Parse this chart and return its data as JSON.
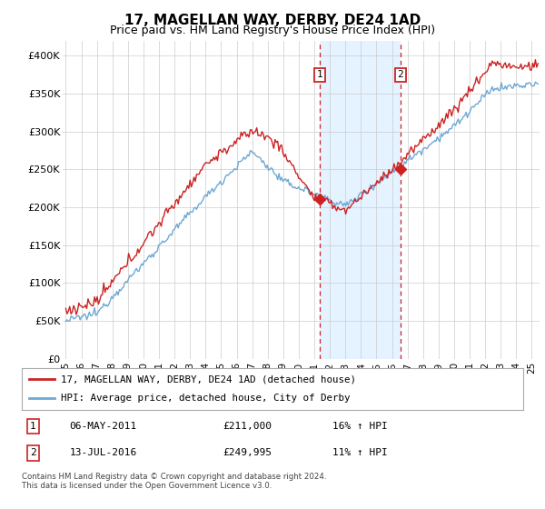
{
  "title": "17, MAGELLAN WAY, DERBY, DE24 1AD",
  "subtitle": "Price paid vs. HM Land Registry's House Price Index (HPI)",
  "ylabel_ticks": [
    "£0",
    "£50K",
    "£100K",
    "£150K",
    "£200K",
    "£250K",
    "£300K",
    "£350K",
    "£400K"
  ],
  "ytick_values": [
    0,
    50000,
    100000,
    150000,
    200000,
    250000,
    300000,
    350000,
    400000
  ],
  "ylim": [
    0,
    420000
  ],
  "xlim_start": 1994.8,
  "xlim_end": 2025.5,
  "sale1_date": 2011.35,
  "sale1_price": 211000,
  "sale2_date": 2016.54,
  "sale2_price": 249995,
  "hpi_line_color": "#6fa8d4",
  "price_color": "#cc2222",
  "shade_color": "#ddeeff",
  "legend_line1": "17, MAGELLAN WAY, DERBY, DE24 1AD (detached house)",
  "legend_line2": "HPI: Average price, detached house, City of Derby",
  "footnote": "Contains HM Land Registry data © Crown copyright and database right 2024.\nThis data is licensed under the Open Government Licence v3.0.",
  "background_color": "#ffffff",
  "grid_color": "#cccccc",
  "title_fontsize": 11,
  "subtitle_fontsize": 9
}
